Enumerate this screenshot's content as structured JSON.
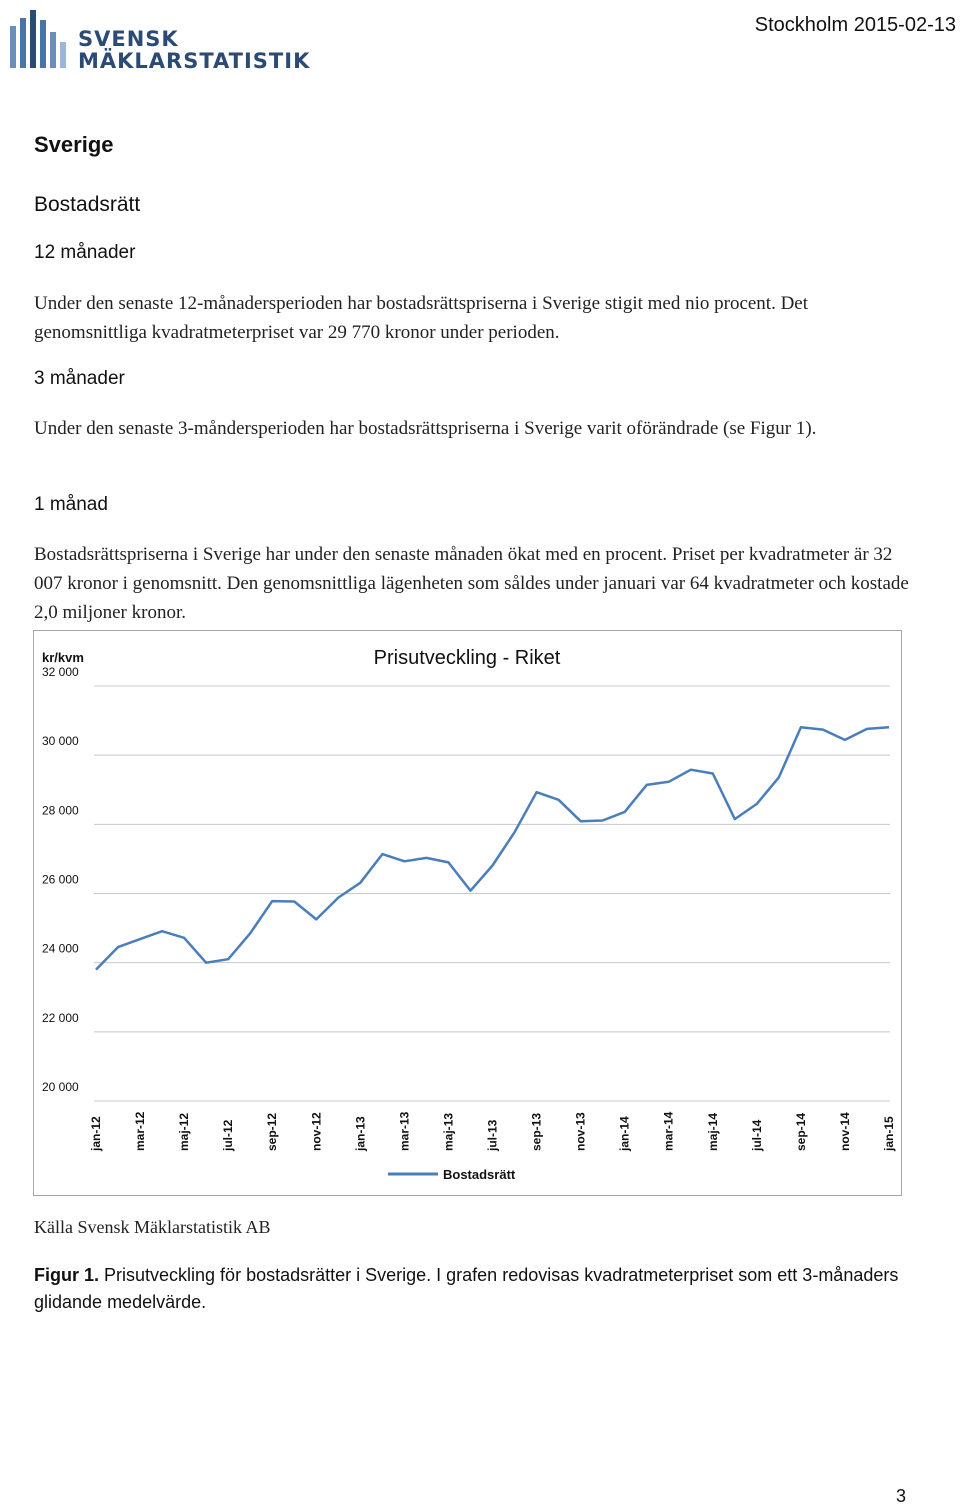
{
  "header": {
    "logo_line1": "SVENSK",
    "logo_line2": "MÄKLARSTATISTIK",
    "place_date": "Stockholm 2015-02-13"
  },
  "section": {
    "title": "Sverige",
    "subtitle": "Bostadsrätt",
    "h_12": "12 månader",
    "p_12": "Under den senaste 12-månadersperioden har bostadsrättspriserna i Sverige stigit med nio procent. Det genomsnittliga kvadratmeterpriset var 29 770 kronor under perioden.",
    "h_3": "3 månader",
    "p_3": "Under den senaste 3-måndersperioden har bostadsrättspriserna i Sverige varit oförändrade (se Figur 1).",
    "h_1": "1 månad",
    "p_1": "Bostadsrättspriserna i Sverige har under den senaste månaden ökat med en procent. Priset per kvadratmeter är 32 007 kronor i genomsnitt. Den genomsnittliga lägenheten som såldes under januari var 64 kvadratmeter och kostade 2,0 miljoner kronor."
  },
  "chart_data": {
    "type": "line",
    "title": "Prisutveckling - Riket",
    "ylabel": "kr/kvm",
    "xlabel": "",
    "ylim": [
      20000,
      32000
    ],
    "yticks": [
      20000,
      22000,
      24000,
      26000,
      28000,
      30000,
      32000
    ],
    "ytick_labels": [
      "20 000",
      "22 000",
      "24 000",
      "26 000",
      "28 000",
      "30 000",
      "32 000"
    ],
    "x": [
      "jan-12",
      "feb-12",
      "mar-12",
      "apr-12",
      "maj-12",
      "jun-12",
      "jul-12",
      "aug-12",
      "sep-12",
      "okt-12",
      "nov-12",
      "dec-12",
      "jan-13",
      "feb-13",
      "mar-13",
      "apr-13",
      "maj-13",
      "jun-13",
      "jul-13",
      "aug-13",
      "sep-13",
      "okt-13",
      "nov-13",
      "dec-13",
      "jan-14",
      "feb-14",
      "mar-14",
      "apr-14",
      "maj-14",
      "jun-14",
      "jul-14",
      "aug-14",
      "sep-14",
      "okt-14",
      "nov-14",
      "dec-14",
      "jan-15"
    ],
    "xtick_labels": [
      "jan-12",
      "mar-12",
      "maj-12",
      "jul-12",
      "sep-12",
      "nov-12",
      "jan-13",
      "mar-13",
      "maj-13",
      "jul-13",
      "sep-13",
      "nov-13",
      "jan-14",
      "mar-14",
      "maj-14",
      "jul-14",
      "sep-14",
      "nov-14",
      "jan-15"
    ],
    "series": [
      {
        "name": "Bostadsrätt",
        "color": "#4a7ebb",
        "values": [
          23800,
          24450,
          24680,
          24910,
          24720,
          24000,
          24100,
          24850,
          25780,
          25770,
          25250,
          25880,
          26310,
          27140,
          26930,
          27030,
          26900,
          26080,
          26810,
          27770,
          28930,
          28710,
          28090,
          28110,
          28360,
          29140,
          29230,
          29580,
          29470,
          28150,
          28590,
          29360,
          30810,
          30740,
          30440,
          30760,
          30810
        ]
      }
    ],
    "legend": "bottom-center",
    "grid": true
  },
  "figure": {
    "source": "Källa Svensk Mäklarstatistik AB",
    "caption_label": "Figur 1.",
    "caption_text": " Prisutveckling för bostadsrätter i Sverige. I grafen redovisas kvadratmeterpriset som ett 3-månaders glidande medelvärde."
  },
  "page_number": "3"
}
